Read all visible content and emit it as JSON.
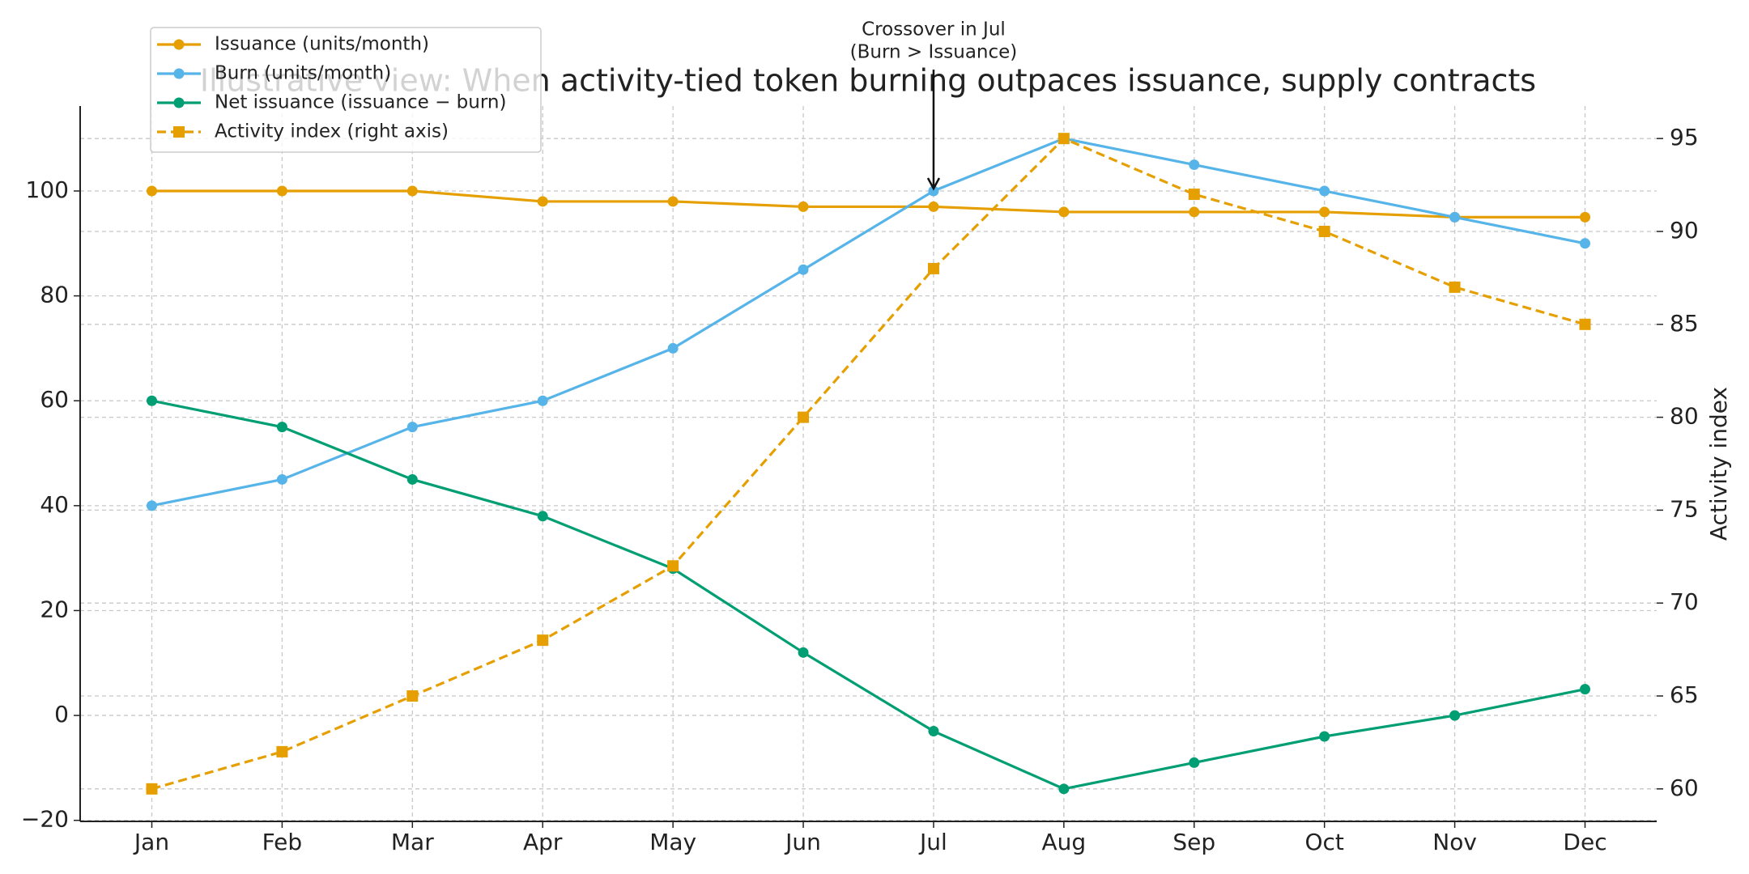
{
  "chart_data": {
    "type": "line",
    "title": "Illustrative view: When activity-tied token burning outpaces issuance, supply contracts",
    "categories": [
      "Jan",
      "Feb",
      "Mar",
      "Apr",
      "May",
      "Jun",
      "Jul",
      "Aug",
      "Sep",
      "Oct",
      "Nov",
      "Dec"
    ],
    "series": [
      {
        "name": "Issuance (units/month)",
        "color": "#E69F00",
        "values": [
          100,
          100,
          100,
          98,
          98,
          97,
          97,
          96,
          96,
          96,
          95,
          95
        ]
      },
      {
        "name": "Burn (units/month)",
        "color": "#56B4E9",
        "values": [
          40,
          45,
          55,
          60,
          70,
          85,
          100,
          110,
          105,
          100,
          95,
          90
        ]
      },
      {
        "name": "Net issuance (issuance − burn)",
        "color": "#009E73",
        "values": [
          60,
          55,
          45,
          38,
          28,
          12,
          -3,
          -14,
          -9,
          -4,
          0,
          5
        ]
      },
      {
        "name": "Activity index (right axis)",
        "color": "#E69F00",
        "axis": "y2",
        "dashed": true,
        "marker": "square",
        "values": [
          60,
          62,
          65,
          68,
          72,
          80,
          88,
          95,
          92,
          90,
          87,
          85
        ]
      }
    ],
    "ylim": [
      -20.2,
      116.2
    ],
    "yticks": [
      {
        "value": -20,
        "label": "−20"
      },
      0,
      20,
      40,
      60,
      80,
      100
    ],
    "y2lim": [
      58.25,
      96.75
    ],
    "y2ticks": [
      60,
      65,
      70,
      75,
      80,
      85,
      90,
      95
    ],
    "y2label": "Activity index",
    "grid": true,
    "legend": "upper left",
    "annotation": {
      "lines": [
        "Crossover in Jul",
        "(Burn > Issuance)"
      ]
    }
  }
}
